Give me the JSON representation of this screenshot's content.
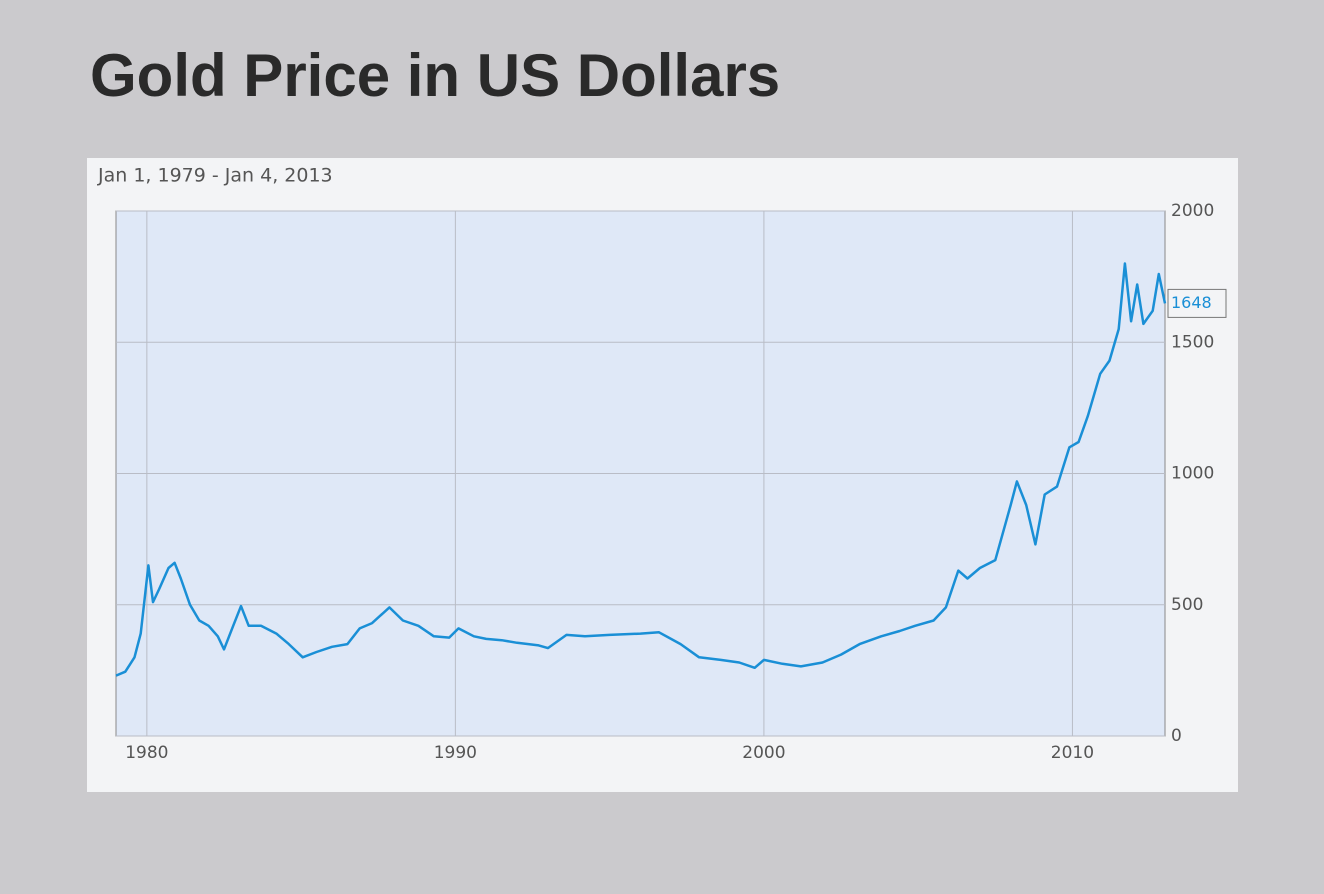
{
  "chart_data": {
    "type": "line",
    "title": "Gold Price in US Dollars",
    "subtitle": "Jan 1, 1979 - Jan 4, 2013",
    "series": [
      {
        "name": "Gold",
        "color": "#1a8fd6",
        "x": [
          1979.0,
          1979.3,
          1979.6,
          1979.8,
          1980.05,
          1980.2,
          1980.4,
          1980.7,
          1980.9,
          1981.1,
          1981.4,
          1981.7,
          1982.0,
          1982.3,
          1982.5,
          1982.8,
          1983.05,
          1983.3,
          1983.7,
          1984.2,
          1984.6,
          1985.05,
          1985.5,
          1986.0,
          1986.5,
          1986.9,
          1987.3,
          1987.86,
          1988.3,
          1988.8,
          1989.3,
          1989.8,
          1990.1,
          1990.6,
          1991.0,
          1991.5,
          1992.0,
          1992.7,
          1993.0,
          1993.6,
          1994.2,
          1995.0,
          1996.0,
          1996.6,
          1997.3,
          1997.9,
          1998.6,
          1999.2,
          1999.7,
          2000.0,
          2000.6,
          2001.2,
          2001.9,
          2002.5,
          2003.1,
          2003.8,
          2004.4,
          2004.9,
          2005.5,
          2005.9,
          2006.3,
          2006.6,
          2007.0,
          2007.5,
          2008.0,
          2008.2,
          2008.5,
          2008.8,
          2009.1,
          2009.5,
          2009.9,
          2010.2,
          2010.5,
          2010.9,
          2011.2,
          2011.5,
          2011.7,
          2011.9,
          2012.1,
          2012.3,
          2012.6,
          2012.8,
          2013.0
        ],
        "values": [
          230,
          245,
          300,
          390,
          650,
          510,
          560,
          640,
          660,
          600,
          500,
          440,
          420,
          380,
          330,
          420,
          495,
          420,
          420,
          390,
          350,
          300,
          320,
          340,
          350,
          410,
          430,
          490,
          440,
          420,
          380,
          375,
          410,
          380,
          370,
          365,
          355,
          345,
          335,
          385,
          380,
          385,
          390,
          395,
          350,
          300,
          290,
          280,
          260,
          290,
          275,
          265,
          280,
          310,
          350,
          380,
          400,
          420,
          440,
          490,
          630,
          600,
          640,
          670,
          880,
          970,
          880,
          730,
          920,
          950,
          1100,
          1120,
          1220,
          1380,
          1430,
          1550,
          1800,
          1580,
          1720,
          1570,
          1620,
          1760,
          1648
        ]
      }
    ],
    "xlim": [
      1979.0,
      2013.0
    ],
    "xticks": [
      1980,
      1990,
      2000,
      2010
    ],
    "ylim": [
      0,
      2000
    ],
    "yticks": [
      0,
      500,
      1000,
      1500,
      2000
    ],
    "grid": true
  }
}
